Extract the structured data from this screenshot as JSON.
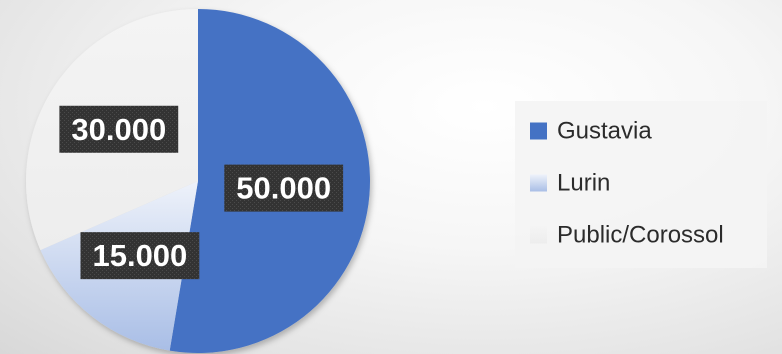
{
  "chart_data": {
    "type": "pie",
    "categories": [
      "Gustavia",
      "Lurin",
      "Public/Corossol"
    ],
    "values": [
      50000,
      15000,
      30000
    ],
    "data_labels": [
      "50.000",
      "15.000",
      "30.000"
    ],
    "colors": [
      "#4472c4",
      "#c5d3ee",
      "#f2f2f2"
    ],
    "start_angle_deg": 0,
    "direction": "clockwise",
    "legend_position": "right"
  }
}
